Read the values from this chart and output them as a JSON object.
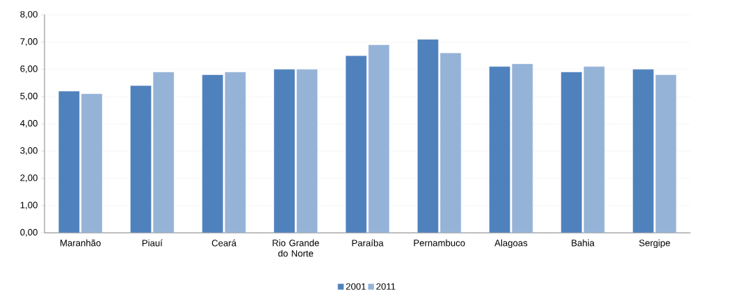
{
  "chart_data": {
    "type": "bar",
    "categories": [
      "Maranhão",
      "Piauí",
      "Ceará",
      "Rio Grande do Norte",
      "Paraíba",
      "Pernambuco",
      "Alagoas",
      "Bahia",
      "Sergipe"
    ],
    "series": [
      {
        "name": "2001",
        "color": "#4f81bd",
        "values": [
          5.2,
          5.4,
          5.8,
          6.0,
          6.5,
          7.1,
          6.1,
          5.9,
          6.0
        ]
      },
      {
        "name": "2011",
        "color": "#95b3d7",
        "values": [
          5.1,
          5.9,
          5.9,
          6.0,
          6.9,
          6.6,
          6.2,
          6.1,
          5.8
        ]
      }
    ],
    "ylim": [
      0,
      8
    ],
    "yticks": [
      {
        "value": 0,
        "label": "0,00"
      },
      {
        "value": 1,
        "label": "1,00"
      },
      {
        "value": 2,
        "label": "2,00"
      },
      {
        "value": 3,
        "label": "3,00"
      },
      {
        "value": 4,
        "label": "4,00"
      },
      {
        "value": 5,
        "label": "5,00"
      },
      {
        "value": 6,
        "label": "6,00"
      },
      {
        "value": 7,
        "label": "7,00"
      },
      {
        "value": 8,
        "label": "8,00"
      }
    ],
    "grid": "y",
    "legend": "bottom"
  }
}
